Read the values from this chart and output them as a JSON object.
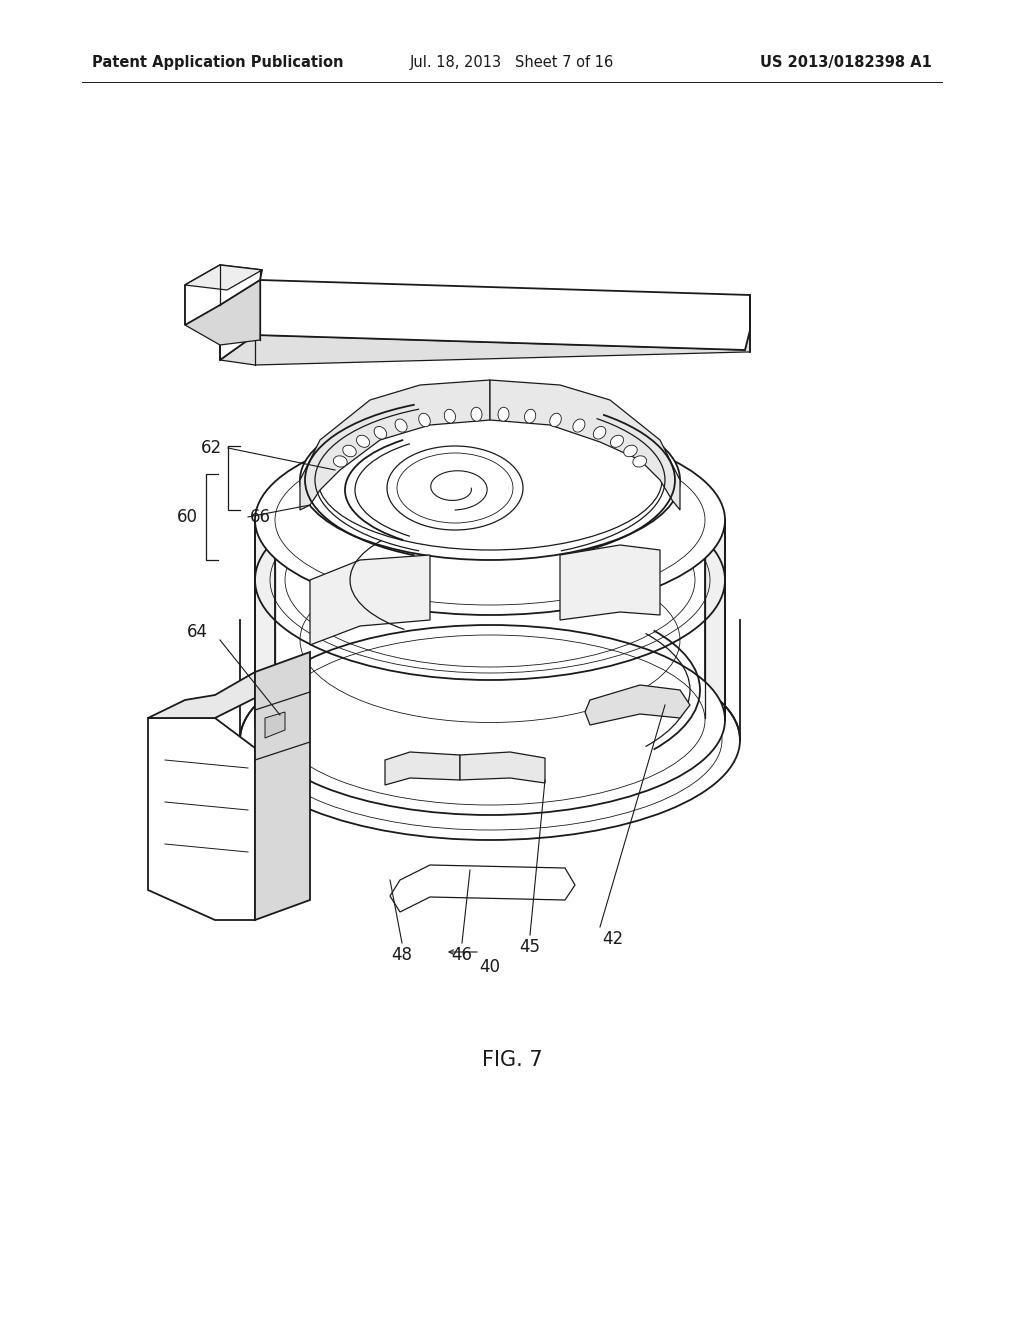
{
  "header_left": "Patent Application Publication",
  "header_center": "Jul. 18, 2013   Sheet 7 of 16",
  "header_right": "US 2013/0182398 A1",
  "figure_label": "FIG. 7",
  "background_color": "#ffffff",
  "line_color": "#1a1a1a",
  "header_fontsize": 10.5,
  "fig_label_fontsize": 15,
  "annotation_fontsize": 12,
  "page_width": 10.24,
  "page_height": 13.2,
  "dpi": 100
}
